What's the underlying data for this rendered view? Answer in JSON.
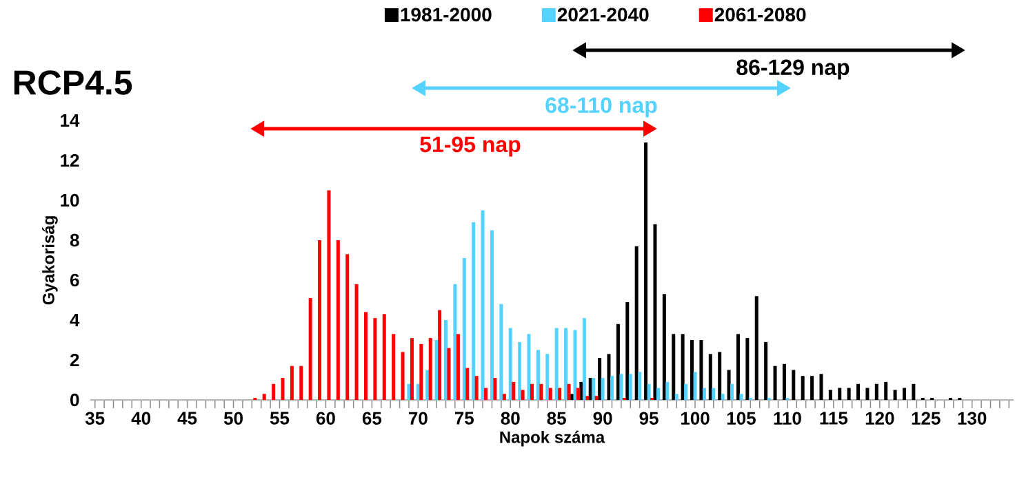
{
  "chart_data": {
    "type": "bar",
    "title": "RCP4.5",
    "xlabel": "Napok száma",
    "ylabel": "Gyakoriság",
    "categories": [
      "35",
      null,
      null,
      null,
      null,
      "40",
      null,
      null,
      null,
      null,
      "45",
      null,
      null,
      null,
      null,
      "50",
      null,
      null,
      null,
      null,
      "55",
      null,
      null,
      null,
      null,
      "60",
      null,
      null,
      null,
      null,
      "65",
      null,
      null,
      null,
      null,
      "70",
      null,
      null,
      null,
      null,
      "75",
      null,
      null,
      null,
      null,
      "80",
      null,
      null,
      null,
      null,
      "85",
      null,
      null,
      null,
      null,
      "90",
      null,
      null,
      null,
      null,
      "95",
      null,
      null,
      null,
      null,
      "100",
      null,
      null,
      null,
      null,
      "105",
      null,
      null,
      null,
      null,
      "110",
      null,
      null,
      null,
      null,
      "115",
      null,
      null,
      null,
      null,
      "120",
      null,
      null,
      null,
      null,
      "125",
      null,
      null,
      null,
      null,
      "130",
      null,
      null,
      null,
      null
    ],
    "series": [
      {
        "name": "1981-2000",
        "color": "#000000",
        "values": [
          null,
          null,
          null,
          null,
          null,
          null,
          null,
          null,
          null,
          null,
          null,
          null,
          null,
          null,
          null,
          null,
          null,
          null,
          null,
          null,
          null,
          null,
          null,
          null,
          null,
          null,
          null,
          null,
          null,
          null,
          null,
          null,
          null,
          null,
          null,
          null,
          null,
          null,
          null,
          null,
          null,
          null,
          null,
          null,
          null,
          null,
          null,
          null,
          null,
          null,
          null,
          null,
          0.3,
          0.9,
          1.1,
          2.1,
          2.3,
          3.8,
          4.9,
          7.7,
          12.9,
          8.8,
          5.3,
          3.3,
          3.3,
          3.0,
          3.0,
          2.3,
          2.4,
          1.5,
          3.3,
          3.1,
          5.2,
          2.9,
          1.7,
          1.8,
          1.5,
          1.2,
          1.2,
          1.3,
          0.5,
          0.6,
          0.6,
          0.8,
          0.6,
          0.8,
          0.9,
          0.5,
          0.6,
          0.8,
          0.1,
          0.1,
          null,
          0.1,
          0.1,
          null,
          null,
          null,
          null,
          null
        ]
      },
      {
        "name": "2021-2040",
        "color": "#55d2ff",
        "values": [
          null,
          null,
          null,
          null,
          null,
          null,
          null,
          null,
          null,
          null,
          null,
          null,
          null,
          null,
          null,
          null,
          null,
          null,
          null,
          null,
          null,
          null,
          null,
          null,
          null,
          null,
          null,
          null,
          null,
          null,
          null,
          null,
          null,
          null,
          0.8,
          0.8,
          1.5,
          3.0,
          4.0,
          5.8,
          7.1,
          8.9,
          9.5,
          8.5,
          4.8,
          3.6,
          2.9,
          3.3,
          2.5,
          2.3,
          3.6,
          3.6,
          3.5,
          4.1,
          1.1,
          1.1,
          1.2,
          1.3,
          1.3,
          1.4,
          0.8,
          0.6,
          0.9,
          0.3,
          0.8,
          1.4,
          0.6,
          0.6,
          0.3,
          0.8,
          0.3,
          0.1,
          null,
          0.1,
          null,
          0.1,
          null,
          null,
          null,
          null,
          null,
          null,
          null,
          null,
          null,
          null,
          null,
          null,
          null,
          null,
          null,
          null,
          null,
          null,
          null,
          null,
          null,
          null,
          null,
          null
        ]
      },
      {
        "name": "2061-2080",
        "color": "#ff0000",
        "values": [
          null,
          null,
          null,
          null,
          null,
          null,
          null,
          null,
          null,
          null,
          null,
          null,
          null,
          null,
          null,
          null,
          null,
          0.1,
          0.3,
          0.8,
          1.1,
          1.7,
          1.7,
          5.1,
          8.0,
          10.5,
          8.0,
          7.3,
          5.8,
          4.4,
          4.1,
          4.3,
          3.3,
          2.4,
          3.1,
          2.8,
          3.1,
          4.5,
          2.6,
          3.3,
          1.6,
          1.2,
          0.6,
          1.1,
          0.3,
          0.9,
          0.5,
          0.8,
          0.8,
          0.6,
          0.6,
          0.8,
          0.6,
          0.2,
          0.2,
          null,
          null,
          0.1,
          null,
          null,
          0.1,
          null,
          null,
          null,
          null,
          null,
          null,
          null,
          null,
          null,
          null,
          null,
          null,
          null,
          null,
          null,
          null,
          null,
          null,
          null,
          null,
          null,
          null,
          null,
          null,
          null,
          null,
          null,
          null,
          null,
          null,
          null,
          null,
          null,
          null,
          null,
          null,
          null,
          null,
          null
        ]
      }
    ],
    "ylim": [
      0,
      14
    ],
    "yticks": [
      0,
      2,
      4,
      6,
      8,
      10,
      12,
      14
    ],
    "annotations": [
      "86-129 nap",
      "68-110 nap",
      "51-95 nap"
    ],
    "legend": "top"
  }
}
